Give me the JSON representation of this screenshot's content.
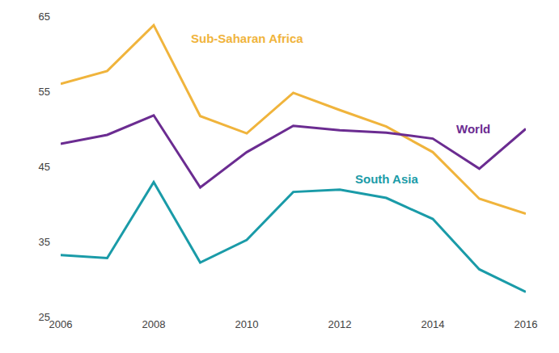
{
  "chart_data": {
    "type": "line",
    "x": [
      2006,
      2007,
      2008,
      2009,
      2010,
      2011,
      2012,
      2013,
      2014,
      2015,
      2016
    ],
    "series": [
      {
        "name": "Sub-Saharan Africa",
        "color": "#F0B43C",
        "values": [
          56.0,
          57.7,
          63.8,
          51.7,
          49.4,
          54.8,
          52.5,
          50.3,
          46.9,
          40.7,
          38.7
        ]
      },
      {
        "name": "World",
        "color": "#6B2C91",
        "values": [
          48.0,
          49.2,
          51.8,
          42.2,
          46.9,
          50.4,
          49.8,
          49.5,
          48.7,
          44.7,
          50.0
        ]
      },
      {
        "name": "South Asia",
        "color": "#1A9BA8",
        "values": [
          33.2,
          32.8,
          42.9,
          32.2,
          35.2,
          41.6,
          41.9,
          40.8,
          38.0,
          31.3,
          28.3
        ]
      }
    ],
    "xlim": [
      2006,
      2016
    ],
    "xticks": [
      2006,
      2008,
      2010,
      2012,
      2014,
      2016
    ],
    "ylim": [
      25,
      65
    ],
    "yticks": [
      25,
      35,
      45,
      55,
      65
    ],
    "grid": false
  }
}
